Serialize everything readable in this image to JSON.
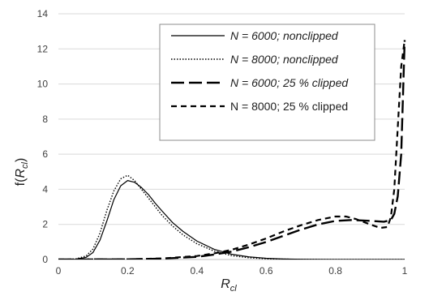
{
  "chart_data": {
    "type": "line",
    "title": "",
    "xlabel": {
      "main": "R",
      "sub": "cl"
    },
    "ylabel": {
      "prefix": "f(",
      "main": "R",
      "sub": "cl",
      "suffix": ")"
    },
    "xlim": [
      0,
      1
    ],
    "ylim": [
      0,
      14
    ],
    "x_ticks": [
      0,
      0.2,
      0.4,
      0.6,
      0.8,
      1
    ],
    "x_tick_labels": [
      "0",
      "0.2",
      "0.4",
      "0.6",
      "0.8",
      "1"
    ],
    "y_ticks": [
      0,
      2,
      4,
      6,
      8,
      10,
      12,
      14
    ],
    "y_tick_labels": [
      "0",
      "2",
      "4",
      "6",
      "8",
      "10",
      "12",
      "14"
    ],
    "grid": "horizontal",
    "legend_position": "top-right",
    "series": [
      {
        "name": "N = 6000; nonclipped",
        "style": "solid",
        "color": "#000000",
        "x": [
          0,
          0.05,
          0.08,
          0.1,
          0.12,
          0.14,
          0.16,
          0.18,
          0.2,
          0.22,
          0.24,
          0.26,
          0.28,
          0.3,
          0.33,
          0.36,
          0.4,
          0.45,
          0.5,
          0.55,
          0.6,
          0.65,
          0.7,
          0.8,
          0.9,
          1.0
        ],
        "y": [
          0,
          0.02,
          0.12,
          0.4,
          1.1,
          2.2,
          3.4,
          4.2,
          4.5,
          4.4,
          4.1,
          3.7,
          3.2,
          2.75,
          2.1,
          1.6,
          1.05,
          0.58,
          0.3,
          0.15,
          0.07,
          0.03,
          0.01,
          0,
          0,
          0
        ]
      },
      {
        "name": "N = 8000; nonclipped",
        "style": "dotted",
        "color": "#000000",
        "x": [
          0,
          0.05,
          0.08,
          0.1,
          0.12,
          0.14,
          0.16,
          0.18,
          0.2,
          0.22,
          0.24,
          0.26,
          0.28,
          0.3,
          0.33,
          0.36,
          0.4,
          0.45,
          0.5,
          0.55,
          0.6,
          0.65,
          0.7,
          0.8,
          0.9,
          1.0
        ],
        "y": [
          0,
          0.03,
          0.2,
          0.6,
          1.5,
          2.8,
          3.9,
          4.6,
          4.8,
          4.5,
          4.0,
          3.5,
          3.0,
          2.5,
          1.9,
          1.4,
          0.9,
          0.48,
          0.22,
          0.1,
          0.04,
          0.02,
          0.01,
          0,
          0,
          0
        ]
      },
      {
        "name": "N = 6000; 25 % clipped",
        "style": "long-dash",
        "color": "#000000",
        "x": [
          0,
          0.2,
          0.3,
          0.4,
          0.45,
          0.5,
          0.55,
          0.6,
          0.65,
          0.7,
          0.75,
          0.8,
          0.85,
          0.9,
          0.94,
          0.96,
          0.97,
          0.98,
          0.99,
          1.0
        ],
        "y": [
          0,
          0.01,
          0.05,
          0.15,
          0.28,
          0.45,
          0.7,
          1.0,
          1.35,
          1.7,
          2.0,
          2.2,
          2.25,
          2.2,
          2.15,
          2.25,
          2.6,
          3.6,
          6.0,
          12.5
        ]
      },
      {
        "name": "N = 8000; 25 % clipped",
        "style": "short-dash",
        "color": "#000000",
        "x": [
          0,
          0.2,
          0.3,
          0.4,
          0.45,
          0.5,
          0.55,
          0.6,
          0.65,
          0.7,
          0.75,
          0.8,
          0.83,
          0.86,
          0.9,
          0.93,
          0.95,
          0.96,
          0.97,
          0.98,
          0.99,
          1.0
        ],
        "y": [
          0,
          0.01,
          0.06,
          0.2,
          0.35,
          0.55,
          0.85,
          1.2,
          1.6,
          1.95,
          2.25,
          2.45,
          2.45,
          2.3,
          2.0,
          1.8,
          1.85,
          2.4,
          4.0,
          7.5,
          11.0,
          12.5
        ]
      }
    ]
  }
}
